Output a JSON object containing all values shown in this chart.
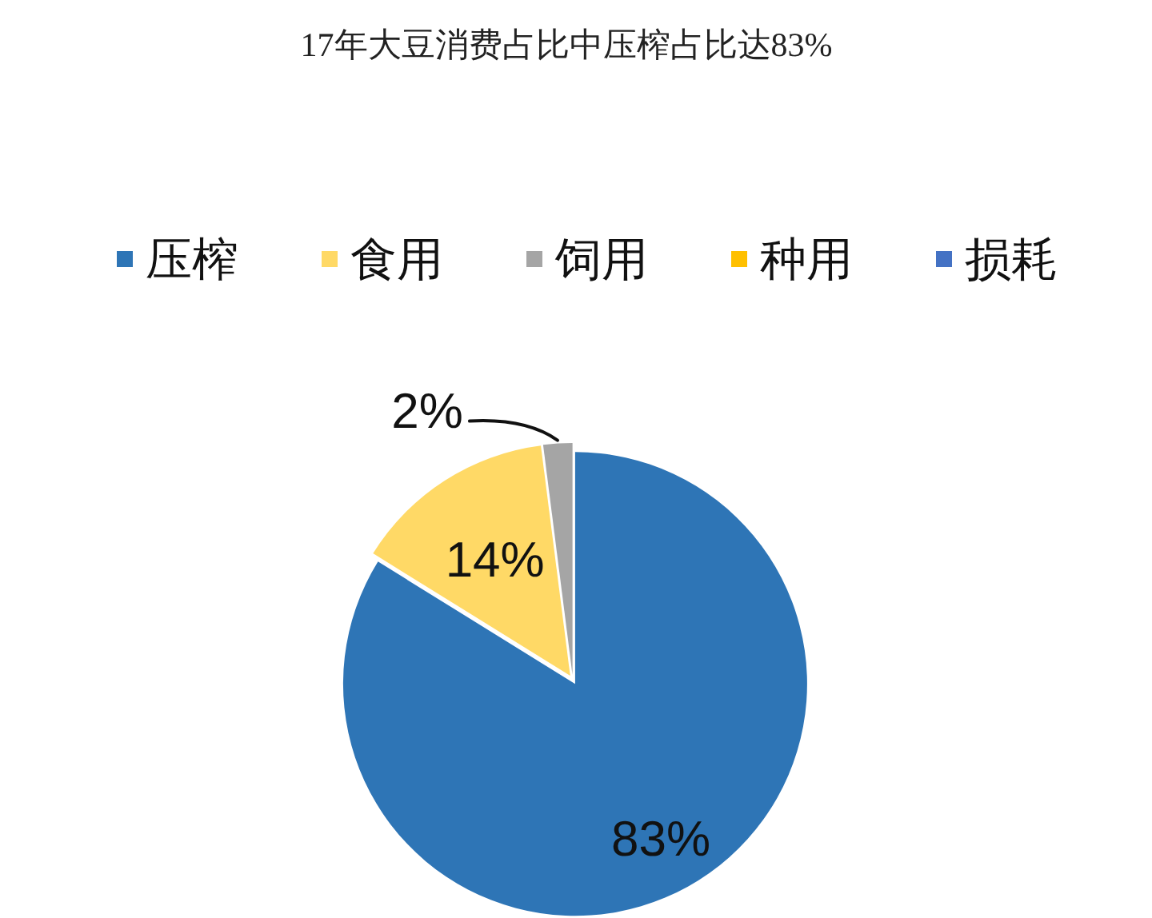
{
  "chart_data": {
    "type": "pie",
    "title": "17年大豆消费占比中压榨占比达83%",
    "categories": [
      "压榨",
      "食用",
      "饲用",
      "种用",
      "损耗"
    ],
    "values": [
      83,
      14,
      2,
      null,
      null
    ],
    "colors": [
      "#2e75b6",
      "#ffd966",
      "#a5a5a5",
      "#ffc000",
      "#4472c4"
    ],
    "value_labels": [
      "83%",
      "14%",
      "2%",
      null,
      null
    ],
    "legend": "top"
  }
}
